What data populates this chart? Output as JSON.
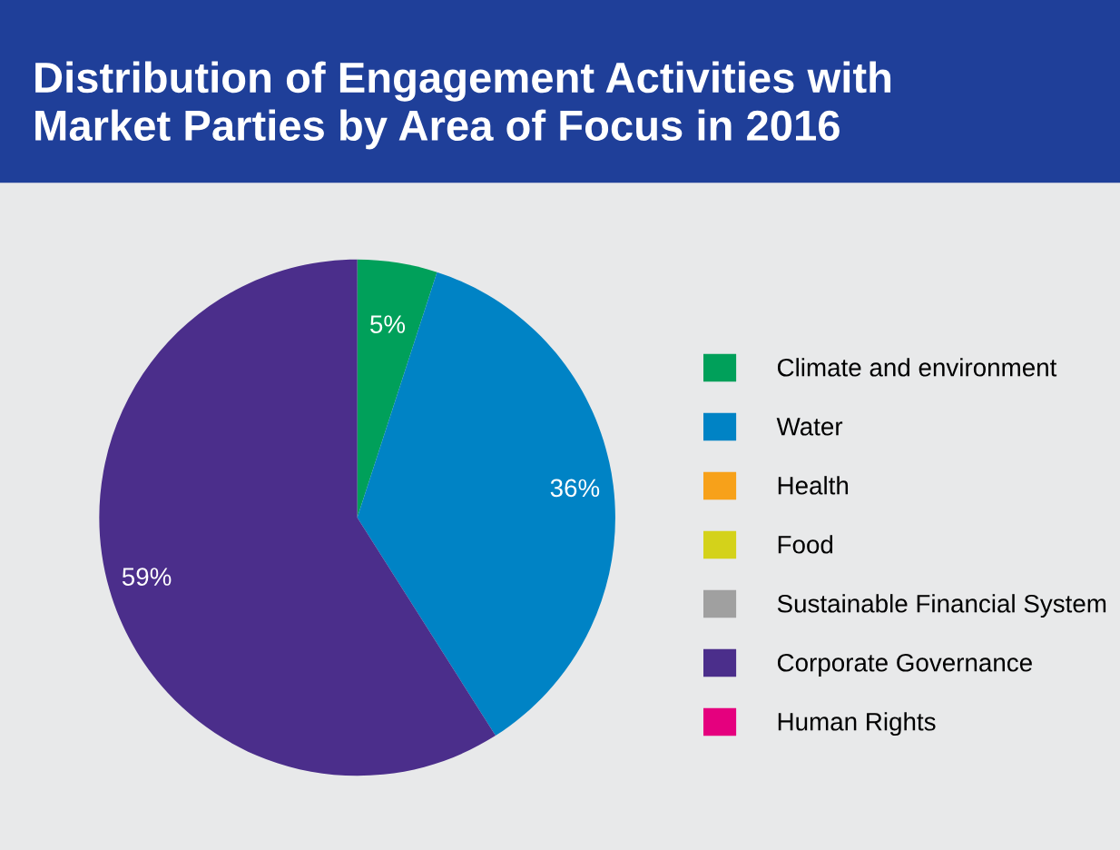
{
  "chart_data": {
    "type": "pie",
    "title": "Distribution of Engagement Activities with\nMarket Parties by Area of Focus in 2016",
    "categories": [
      "Climate and environment",
      "Water",
      "Health",
      "Food",
      "Sustainable Financial System",
      "Corporate Governance",
      "Human Rights"
    ],
    "values": [
      5,
      36,
      0,
      0,
      0,
      59,
      0
    ],
    "colors": [
      "#00a05a",
      "#0083c5",
      "#f7a11a",
      "#d4d21a",
      "#a0a0a0",
      "#4b2e8b",
      "#e5007e"
    ],
    "value_labels": [
      "5%",
      "36%",
      null,
      null,
      null,
      "59%",
      null
    ],
    "legend": "right"
  }
}
